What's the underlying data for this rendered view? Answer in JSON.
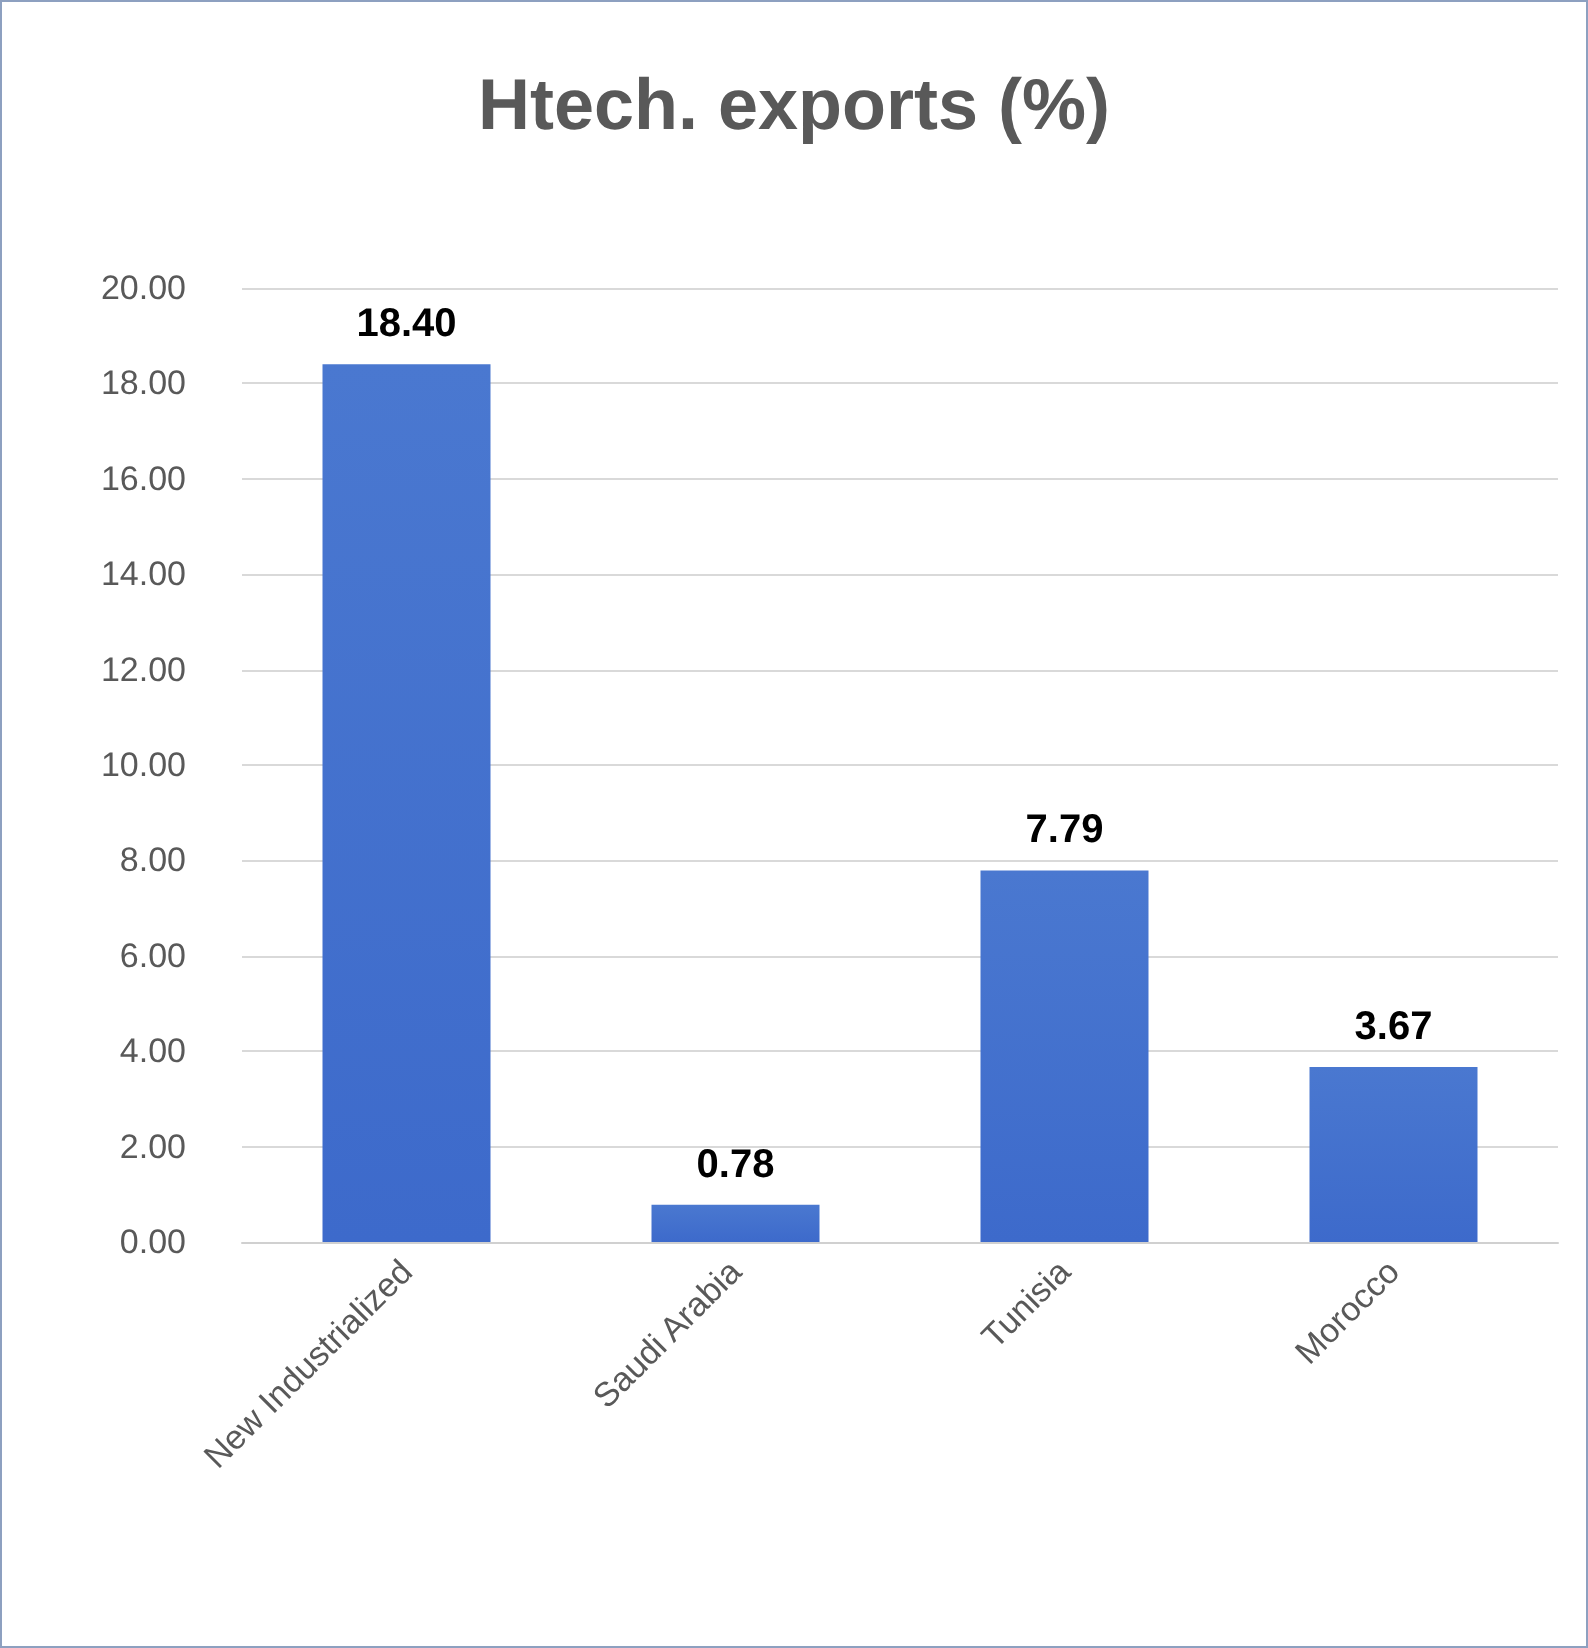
{
  "chart_data": {
    "type": "bar",
    "title": "Htech. exports (%)",
    "categories": [
      "New Industrialized",
      "Saudi Arabia",
      "Tunisia",
      "Morocco"
    ],
    "values": [
      18.4,
      0.78,
      7.79,
      3.67
    ],
    "value_labels": [
      "18.40",
      "0.78",
      "7.79",
      "3.67"
    ],
    "color": "#3d6acb",
    "ylim": [
      0,
      20
    ],
    "yticks": [
      {
        "value": 0,
        "label": "0.00"
      },
      {
        "value": 2,
        "label": "2.00"
      },
      {
        "value": 4,
        "label": "4.00"
      },
      {
        "value": 6,
        "label": "6.00"
      },
      {
        "value": 8,
        "label": "8.00"
      },
      {
        "value": 10,
        "label": "10.00"
      },
      {
        "value": 12,
        "label": "12.00"
      },
      {
        "value": 14,
        "label": "14.00"
      },
      {
        "value": 16,
        "label": "16.00"
      },
      {
        "value": 18,
        "label": "18.00"
      },
      {
        "value": 20,
        "label": "20.00"
      }
    ],
    "grid": "y"
  }
}
